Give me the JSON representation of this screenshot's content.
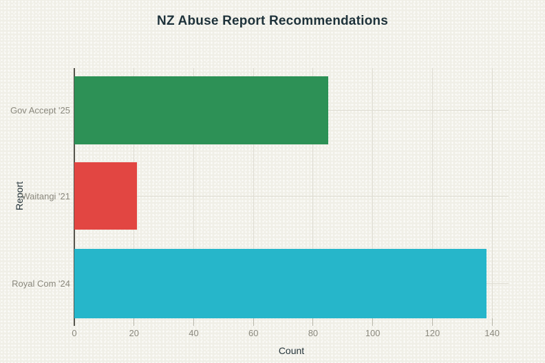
{
  "title": "NZ Abuse Report Recommendations",
  "colors": {
    "background": "#f0efe7",
    "grid": "#dfddd3",
    "axis_line": "#55544c",
    "tick_mark": "#b8b6aa",
    "tick_label": "#8a887d",
    "category_label": "#8a887d",
    "title_text": "#1e323a",
    "axis_title_text": "#25343a"
  },
  "chart_data": {
    "type": "bar",
    "orientation": "horizontal",
    "title": "NZ Abuse Report Recommendations",
    "categories": [
      "Gov Accept '25",
      "Waitangi '21",
      "Royal Com '24"
    ],
    "values": [
      85,
      21,
      138
    ],
    "bar_colors": [
      "#2d9156",
      "#e24642",
      "#26b6ca"
    ],
    "xlabel": "Count",
    "ylabel": "Report",
    "xlim": [
      0,
      145.5
    ],
    "xticks": [
      0,
      20,
      40,
      60,
      80,
      100,
      120,
      140
    ],
    "grid": true,
    "legend": false
  }
}
